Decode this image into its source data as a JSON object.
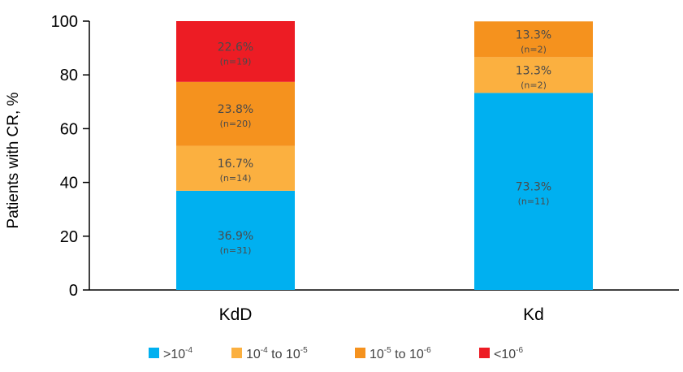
{
  "chart_data": {
    "type": "bar",
    "stacked": true,
    "title": "",
    "xlabel": "",
    "ylabel": "Patients with CR, %",
    "ylim": [
      0,
      100
    ],
    "yticks": [
      "0",
      "20",
      "40",
      "60",
      "80",
      "100"
    ],
    "categories": [
      "KdD",
      "Kd"
    ],
    "series": [
      {
        "name": ">10-4",
        "legend_parts": [
          ">10",
          "-4"
        ],
        "color": "#00b0f0",
        "values": [
          36.9,
          73.3
        ],
        "labels": [
          "36.9%",
          "73.3%"
        ],
        "counts": [
          "(n=31)",
          "(n=11)"
        ]
      },
      {
        "name": "10-4 to 10-5",
        "legend_parts": [
          "10",
          "-4",
          " to 10",
          "-5"
        ],
        "color": "#fbb040",
        "values": [
          16.7,
          13.3
        ],
        "labels": [
          "16.7%",
          "13.3%"
        ],
        "counts": [
          "(n=14)",
          "(n=2)"
        ]
      },
      {
        "name": "10-5 to 10-6",
        "legend_parts": [
          "10",
          "-5",
          " to 10",
          "-6"
        ],
        "color": "#f5921e",
        "values": [
          23.8,
          13.3
        ],
        "labels": [
          "23.8%",
          "13.3%"
        ],
        "counts": [
          "(n=20)",
          "(n=2)"
        ]
      },
      {
        "name": "<10-6",
        "legend_parts": [
          "<10",
          "-6"
        ],
        "color": "#ed1c24",
        "values": [
          22.6,
          0
        ],
        "labels": [
          "22.6%",
          ""
        ],
        "counts": [
          "(n=19)",
          ""
        ]
      }
    ]
  }
}
